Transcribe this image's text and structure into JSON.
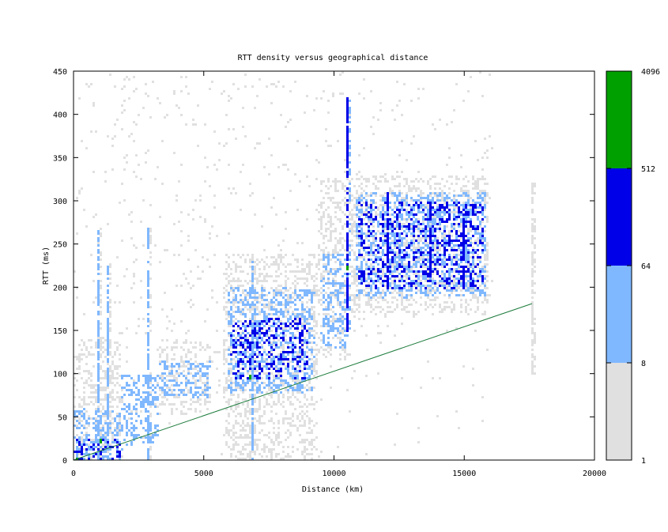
{
  "chart_data": {
    "type": "heatmap",
    "title": "RTT density versus geographical distance",
    "xlabel": "Distance (km)",
    "ylabel": "RTT (ms)",
    "xlim": [
      0,
      20000
    ],
    "ylim": [
      0,
      450
    ],
    "x_ticks": [
      0,
      5000,
      10000,
      15000,
      20000
    ],
    "y_ticks": [
      0,
      50,
      100,
      150,
      200,
      250,
      300,
      350,
      400,
      450
    ],
    "colorbar": {
      "scale": "log2",
      "range": [
        1,
        4096
      ],
      "tick_labels": [
        "1",
        "8",
        "64",
        "512",
        "4096"
      ],
      "bands": [
        {
          "from": 1,
          "to": 8,
          "color": "#e0e0e0"
        },
        {
          "from": 8,
          "to": 64,
          "color": "#80b8ff"
        },
        {
          "from": 64,
          "to": 512,
          "color": "#0000e8"
        },
        {
          "from": 512,
          "to": 4096,
          "color": "#00a000"
        }
      ]
    },
    "reference_line": {
      "color": "#1a7a3a",
      "points": [
        [
          0,
          0
        ],
        [
          17600,
          181
        ]
      ]
    },
    "density_clusters": [
      {
        "x": [
          0,
          1800
        ],
        "y": [
          0,
          140
        ],
        "level": 1
      },
      {
        "x": [
          0,
          1800
        ],
        "y": [
          0,
          60
        ],
        "level": 2
      },
      {
        "x": [
          0,
          1800
        ],
        "y": [
          0,
          25
        ],
        "level": 3
      },
      {
        "x": [
          1800,
          3200
        ],
        "y": [
          20,
          100
        ],
        "level": 2
      },
      {
        "x": [
          3200,
          5200
        ],
        "y": [
          55,
          140
        ],
        "level": 1
      },
      {
        "x": [
          3300,
          5200
        ],
        "y": [
          75,
          115
        ],
        "level": 2
      },
      {
        "x": [
          5700,
          9300
        ],
        "y": [
          0,
          240
        ],
        "level": 1
      },
      {
        "x": [
          5900,
          9200
        ],
        "y": [
          80,
          200
        ],
        "level": 2
      },
      {
        "x": [
          6000,
          9000
        ],
        "y": [
          95,
          165
        ],
        "level": 3
      },
      {
        "x": [
          9300,
          10600
        ],
        "y": [
          120,
          330
        ],
        "level": 1
      },
      {
        "x": [
          9500,
          10500
        ],
        "y": [
          130,
          240
        ],
        "level": 2
      },
      {
        "x": [
          10600,
          15900
        ],
        "y": [
          170,
          330
        ],
        "level": 1
      },
      {
        "x": [
          10800,
          15800
        ],
        "y": [
          190,
          310
        ],
        "level": 2
      },
      {
        "x": [
          10900,
          15700
        ],
        "y": [
          200,
          300
        ],
        "level": 3
      }
    ],
    "vertical_streaks": [
      {
        "x": 900,
        "y": [
          0,
          270
        ],
        "level": 2
      },
      {
        "x": 1300,
        "y": [
          0,
          230
        ],
        "level": 2
      },
      {
        "x": 2800,
        "y": [
          0,
          270
        ],
        "level": 2
      },
      {
        "x": 6800,
        "y": [
          0,
          230
        ],
        "level": 2
      },
      {
        "x": 10500,
        "y": [
          150,
          420
        ],
        "level": 3
      },
      {
        "x": 12000,
        "y": [
          200,
          310
        ],
        "level": 3
      },
      {
        "x": 13700,
        "y": [
          210,
          300
        ],
        "level": 3
      },
      {
        "x": 14900,
        "y": [
          200,
          290
        ],
        "level": 3
      },
      {
        "x": 17600,
        "y": [
          100,
          320
        ],
        "level": 1
      }
    ],
    "high_density_points": [
      {
        "x": 50,
        "y": 2,
        "level": 4
      },
      {
        "x": 1000,
        "y": 25,
        "level": 4
      },
      {
        "x": 6700,
        "y": 100,
        "level": 4
      },
      {
        "x": 10500,
        "y": 225,
        "level": 4
      }
    ]
  }
}
